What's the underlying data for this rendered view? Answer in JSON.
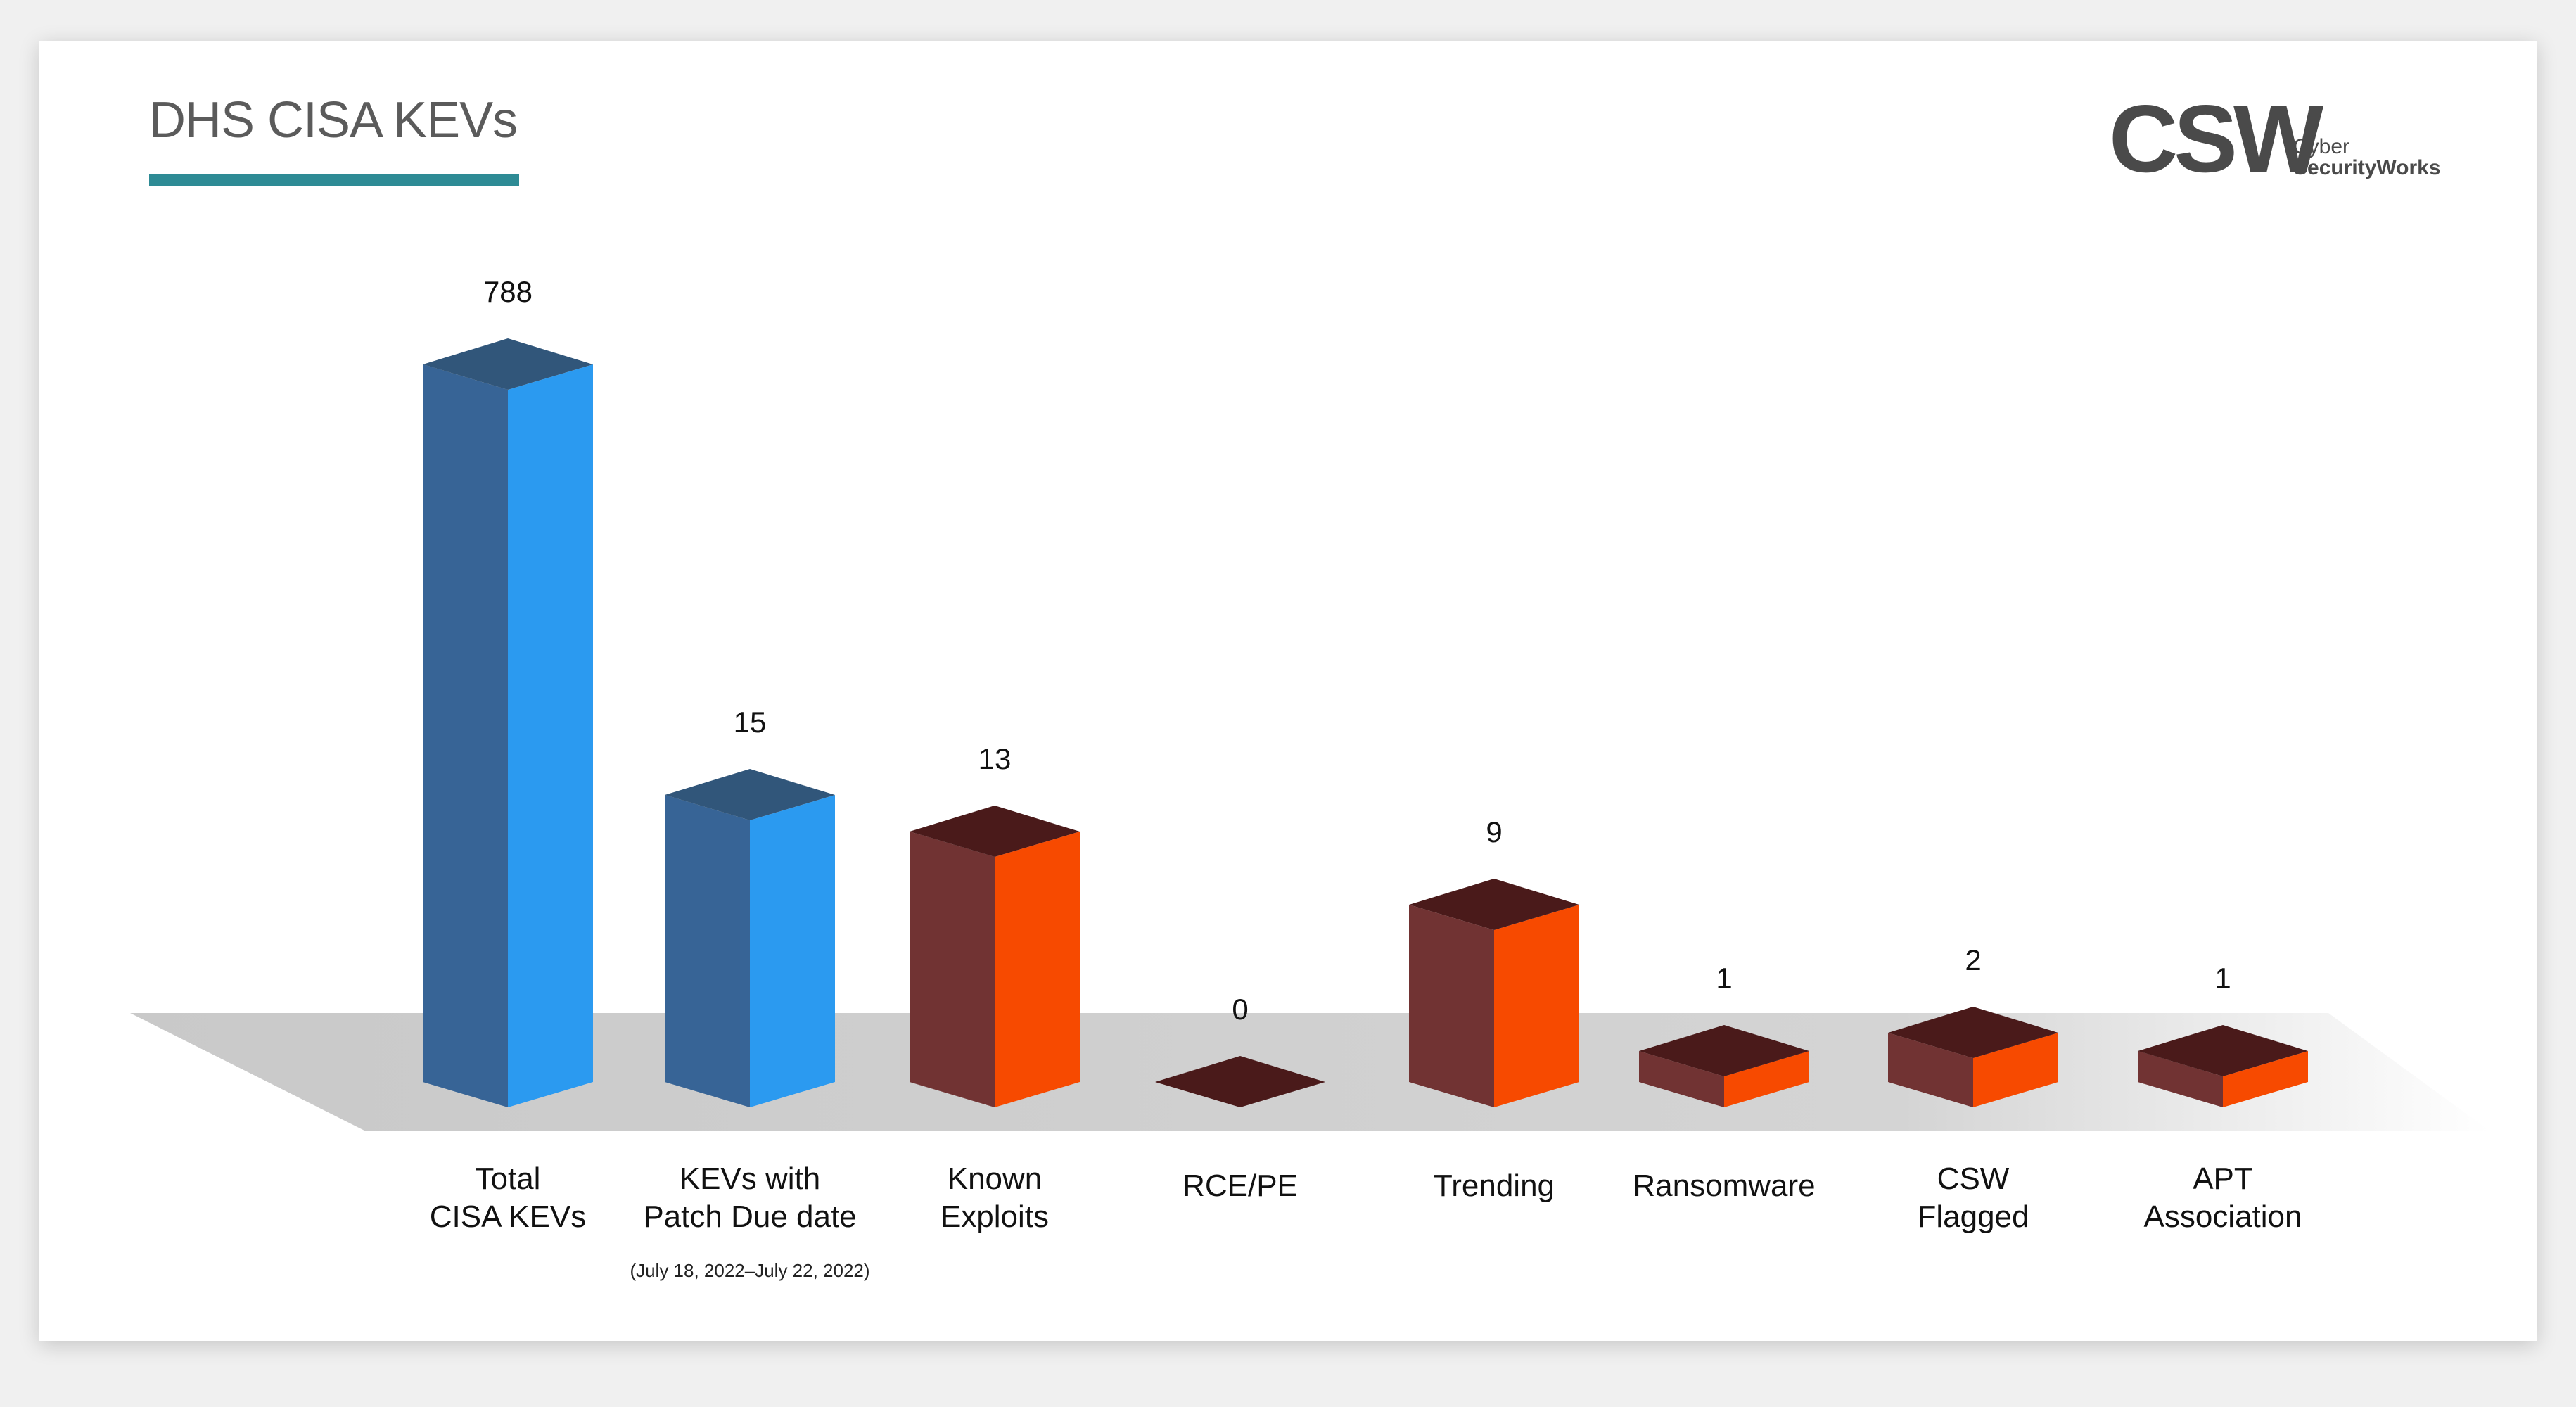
{
  "title": "DHS CISA KEVs",
  "logo": {
    "main": "CSW",
    "line1": "Cyber",
    "line2": "SecurityWorks"
  },
  "colors": {
    "blue_front": "#2b9af0",
    "blue_side": "#376496",
    "blue_top": "#31567a",
    "orange_front": "#f74a00",
    "orange_side": "#713333",
    "orange_top": "#4a1a1a",
    "accent": "#2e8b95"
  },
  "chart_data": {
    "type": "bar",
    "title": "DHS CISA KEVs",
    "categories": [
      "Total\nCISA KEVs",
      "KEVs with\nPatch Due date",
      "Known\nExploits",
      "RCE/PE",
      "Trending",
      "Ransomware",
      "CSW\nFlagged",
      "APT\nAssociation"
    ],
    "values": [
      788,
      15,
      13,
      0,
      9,
      1,
      2,
      1
    ],
    "category_colors": [
      "blue",
      "blue",
      "orange",
      "orange",
      "orange",
      "orange",
      "orange",
      "orange"
    ],
    "sublabel": "(July 18, 2022–July 22, 2022)",
    "grid": false,
    "legend": "none"
  }
}
